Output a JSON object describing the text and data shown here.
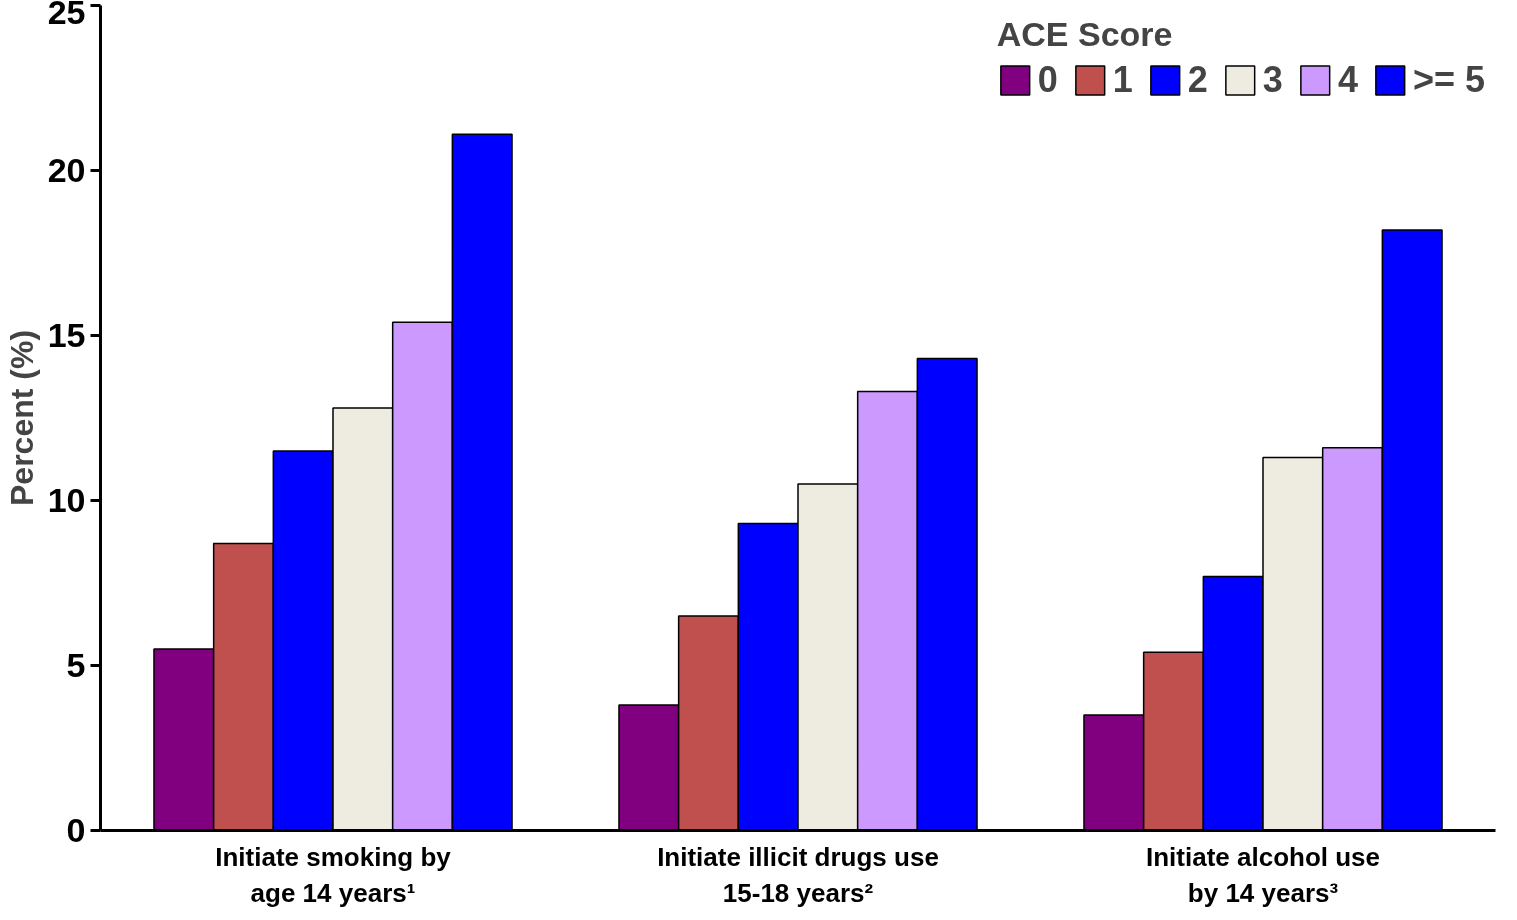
{
  "chart_data": {
    "type": "bar",
    "ylabel": "Percent (%)",
    "legend_title": "ACE Score",
    "legend": "top right",
    "grid": false,
    "categories": [
      "Initiate smoking by\nage 14 years¹",
      "Initiate illicit drugs use\n15-18 years²",
      "Initiate alcohol use\nby 14 years³"
    ],
    "ylim": [
      0,
      25
    ],
    "yticks": [
      0,
      5,
      10,
      15,
      20,
      25
    ],
    "series": [
      {
        "name": "0",
        "color": "#800080",
        "values": [
          5.5,
          3.8,
          3.5
        ]
      },
      {
        "name": "1",
        "color": "#c0504d",
        "values": [
          8.7,
          6.5,
          5.4
        ]
      },
      {
        "name": "2",
        "color": "#0000ff",
        "values": [
          11.5,
          9.3,
          7.7
        ]
      },
      {
        "name": "3",
        "color": "#eeece1",
        "values": [
          12.8,
          10.5,
          11.3
        ]
      },
      {
        "name": "4",
        "color": "#cc99ff",
        "values": [
          15.4,
          13.3,
          11.6
        ]
      },
      {
        "name": ">= 5",
        "color": "#0000ff",
        "values": [
          21.1,
          14.3,
          18.2
        ]
      }
    ]
  }
}
